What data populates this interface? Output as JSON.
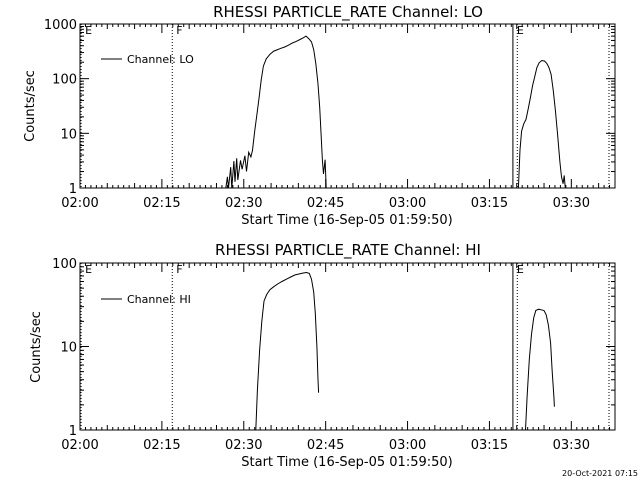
{
  "chart_data": [
    {
      "type": "line",
      "title": "RHESSI PARTICLE_RATE Channel: LO",
      "xlabel": "Start Time (16-Sep-05 01:59:50)",
      "ylabel": "Counts/sec",
      "xlim": [
        0,
        98
      ],
      "ylim": [
        1,
        1000
      ],
      "yscale": "log",
      "x_ticks": [
        {
          "x": 0,
          "label": "02:00"
        },
        {
          "x": 15,
          "label": "02:15"
        },
        {
          "x": 30,
          "label": "02:30"
        },
        {
          "x": 45,
          "label": "02:45"
        },
        {
          "x": 60,
          "label": "03:00"
        },
        {
          "x": 75,
          "label": "03:15"
        },
        {
          "x": 90,
          "label": "03:30"
        }
      ],
      "y_ticks": [
        {
          "y": 1,
          "label": "1"
        },
        {
          "y": 10,
          "label": "10"
        },
        {
          "y": 100,
          "label": "100"
        },
        {
          "y": 1000,
          "label": "1000"
        }
      ],
      "legend": {
        "label": "Channel: LO",
        "position": "top-left"
      },
      "markers": [
        {
          "x": 0.2,
          "label": "E",
          "style": "dotted"
        },
        {
          "x": 16.9,
          "label": "F",
          "style": "dotted"
        },
        {
          "x": 79.3,
          "label": "E",
          "style": "solid"
        },
        {
          "x": 80.1,
          "label": "",
          "style": "dotted"
        },
        {
          "x": 96.9,
          "label": "",
          "style": "dotted"
        }
      ],
      "series": [
        {
          "name": "Channel: LO",
          "segments": [
            [
              [
                26.7,
                1
              ],
              [
                27.0,
                1.6
              ],
              [
                27.2,
                1
              ],
              [
                27.6,
                2.4
              ],
              [
                27.8,
                1
              ],
              [
                28.2,
                3.1
              ],
              [
                28.4,
                1.3
              ],
              [
                28.7,
                3.5
              ],
              [
                28.9,
                1.4
              ],
              [
                29.4,
                3.2
              ],
              [
                29.7,
                2.2
              ],
              [
                30.2,
                3.9
              ],
              [
                30.5,
                2.0
              ],
              [
                30.9,
                4.5
              ],
              [
                31.3,
                3.7
              ],
              [
                31.6,
                4.9
              ],
              [
                32.0,
                11
              ],
              [
                32.4,
                22
              ],
              [
                32.8,
                45
              ],
              [
                33.2,
                95
              ],
              [
                33.6,
                170
              ],
              [
                34.1,
                230
              ],
              [
                34.8,
                280
              ],
              [
                35.5,
                320
              ],
              [
                36.2,
                340
              ],
              [
                36.8,
                360
              ],
              [
                37.5,
                380
              ],
              [
                38.2,
                410
              ],
              [
                38.9,
                450
              ],
              [
                39.6,
                480
              ],
              [
                40.3,
                520
              ],
              [
                40.9,
                560
              ],
              [
                41.4,
                600
              ],
              [
                41.9,
                540
              ],
              [
                42.4,
                470
              ],
              [
                42.8,
                340
              ],
              [
                43.2,
                190
              ],
              [
                43.6,
                80
              ],
              [
                43.9,
                30
              ],
              [
                44.2,
                8
              ],
              [
                44.4,
                3.2
              ],
              [
                44.6,
                1.8
              ],
              [
                44.9,
                3.3
              ],
              [
                45.1,
                1
              ]
            ],
            [
              [
                80.3,
                1
              ],
              [
                80.6,
                5
              ],
              [
                80.9,
                11
              ],
              [
                81.3,
                15
              ],
              [
                81.7,
                18
              ],
              [
                82.1,
                28
              ],
              [
                82.5,
                45
              ],
              [
                82.9,
                75
              ],
              [
                83.3,
                110
              ],
              [
                83.7,
                160
              ],
              [
                84.1,
                195
              ],
              [
                84.6,
                215
              ],
              [
                85.1,
                210
              ],
              [
                85.5,
                190
              ],
              [
                85.9,
                160
              ],
              [
                86.3,
                120
              ],
              [
                86.7,
                60
              ],
              [
                87.1,
                25
              ],
              [
                87.5,
                9
              ],
              [
                87.9,
                3
              ],
              [
                88.2,
                1.6
              ],
              [
                88.5,
                1.2
              ],
              [
                88.7,
                1.7
              ],
              [
                88.9,
                1
              ]
            ]
          ]
        }
      ]
    },
    {
      "type": "line",
      "title": "RHESSI PARTICLE_RATE Channel: HI",
      "xlabel": "Start Time (16-Sep-05 01:59:50)",
      "ylabel": "Counts/sec",
      "xlim": [
        0,
        98
      ],
      "ylim": [
        1,
        100
      ],
      "yscale": "log",
      "x_ticks": [
        {
          "x": 0,
          "label": "02:00"
        },
        {
          "x": 15,
          "label": "02:15"
        },
        {
          "x": 30,
          "label": "02:30"
        },
        {
          "x": 45,
          "label": "02:45"
        },
        {
          "x": 60,
          "label": "03:00"
        },
        {
          "x": 75,
          "label": "03:15"
        },
        {
          "x": 90,
          "label": "03:30"
        }
      ],
      "y_ticks": [
        {
          "y": 1,
          "label": "1"
        },
        {
          "y": 10,
          "label": "10"
        },
        {
          "y": 100,
          "label": "100"
        }
      ],
      "legend": {
        "label": "Channel: HI",
        "position": "top-left"
      },
      "markers": [
        {
          "x": 0.2,
          "label": "E",
          "style": "dotted"
        },
        {
          "x": 16.9,
          "label": "F",
          "style": "dotted"
        },
        {
          "x": 79.3,
          "label": "E",
          "style": "solid"
        },
        {
          "x": 80.1,
          "label": "",
          "style": "dotted"
        },
        {
          "x": 96.9,
          "label": "",
          "style": "dotted"
        }
      ],
      "series": [
        {
          "name": "Channel: HI",
          "segments": [
            [
              [
                32.2,
                1
              ],
              [
                32.5,
                3
              ],
              [
                32.9,
                9
              ],
              [
                33.3,
                20
              ],
              [
                33.7,
                35
              ],
              [
                34.2,
                42
              ],
              [
                34.8,
                48
              ],
              [
                35.5,
                52
              ],
              [
                36.2,
                56
              ],
              [
                37.0,
                60
              ],
              [
                37.8,
                64
              ],
              [
                38.6,
                68
              ],
              [
                39.4,
                72
              ],
              [
                40.2,
                74
              ],
              [
                40.9,
                76
              ],
              [
                41.5,
                77
              ],
              [
                42.0,
                75
              ],
              [
                42.4,
                64
              ],
              [
                42.8,
                45
              ],
              [
                43.1,
                25
              ],
              [
                43.4,
                10
              ],
              [
                43.6,
                4
              ],
              [
                43.7,
                2.8
              ]
            ],
            [
              [
                81.6,
                1
              ],
              [
                81.9,
                2.5
              ],
              [
                82.3,
                7
              ],
              [
                82.7,
                14
              ],
              [
                83.1,
                22
              ],
              [
                83.5,
                27
              ],
              [
                84.0,
                28
              ],
              [
                84.5,
                27.5
              ],
              [
                85.0,
                27
              ],
              [
                85.4,
                24
              ],
              [
                85.8,
                18
              ],
              [
                86.2,
                11
              ],
              [
                86.5,
                5
              ],
              [
                86.8,
                2.5
              ],
              [
                86.9,
                1.9
              ]
            ]
          ]
        }
      ]
    }
  ],
  "timestamp": "20-Oct-2021 07:15"
}
